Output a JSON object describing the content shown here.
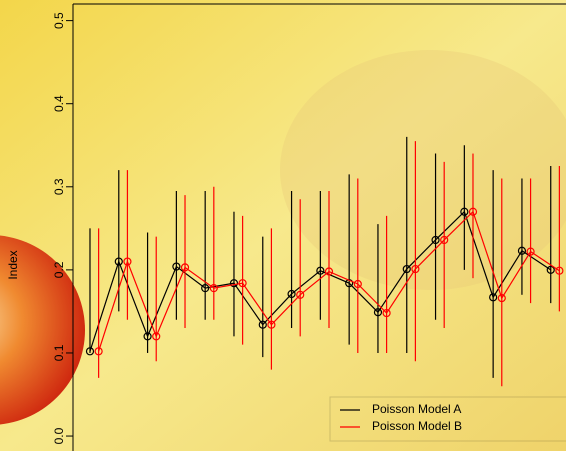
{
  "chart_data": {
    "type": "errorbar-line",
    "y_label": "Index",
    "xlim": [
      0.41,
      17.53
    ],
    "ylim": [
      -0.018,
      0.52
    ],
    "yticks": [
      {
        "value": 0,
        "label": "0.0"
      },
      0.1,
      0.2,
      0.3,
      0.4,
      0.5
    ],
    "legend": "bottomright",
    "series": [
      {
        "name": "Poisson Model A",
        "color": "#000000",
        "x": [
          1,
          2,
          3,
          4,
          5,
          6,
          7,
          8,
          9,
          10,
          11,
          12,
          13,
          14,
          15,
          16,
          17
        ],
        "values": [
          0.102,
          0.21,
          0.12,
          0.204,
          0.178,
          0.184,
          0.134,
          0.171,
          0.199,
          0.184,
          0.149,
          0.201,
          0.236,
          0.27,
          0.167,
          0.223,
          0.2
        ],
        "lower": [
          0.1,
          0.15,
          0.1,
          0.14,
          0.14,
          0.12,
          0.095,
          0.13,
          0.14,
          0.11,
          0.1,
          0.1,
          0.14,
          0.2,
          0.07,
          0.17,
          0.16
        ],
        "upper": [
          0.25,
          0.32,
          0.245,
          0.295,
          0.295,
          0.27,
          0.24,
          0.295,
          0.295,
          0.315,
          0.255,
          0.36,
          0.34,
          0.35,
          0.32,
          0.31,
          0.325
        ]
      },
      {
        "name": "Poisson Model B",
        "color": "#ff0000",
        "x": [
          1.3,
          2.3,
          3.3,
          4.3,
          5.3,
          6.3,
          7.3,
          8.3,
          9.3,
          10.3,
          11.3,
          12.3,
          13.3,
          14.3,
          15.3,
          16.3,
          17.3
        ],
        "values": [
          0.102,
          0.21,
          0.12,
          0.203,
          0.178,
          0.184,
          0.134,
          0.17,
          0.198,
          0.183,
          0.148,
          0.201,
          0.236,
          0.27,
          0.166,
          0.222,
          0.199
        ],
        "lower": [
          0.07,
          0.14,
          0.09,
          0.13,
          0.14,
          0.11,
          0.08,
          0.12,
          0.13,
          0.1,
          0.1,
          0.09,
          0.13,
          0.19,
          0.06,
          0.16,
          0.15
        ],
        "upper": [
          0.25,
          0.32,
          0.24,
          0.29,
          0.3,
          0.265,
          0.25,
          0.285,
          0.295,
          0.31,
          0.265,
          0.355,
          0.33,
          0.34,
          0.31,
          0.31,
          0.325
        ]
      }
    ]
  }
}
